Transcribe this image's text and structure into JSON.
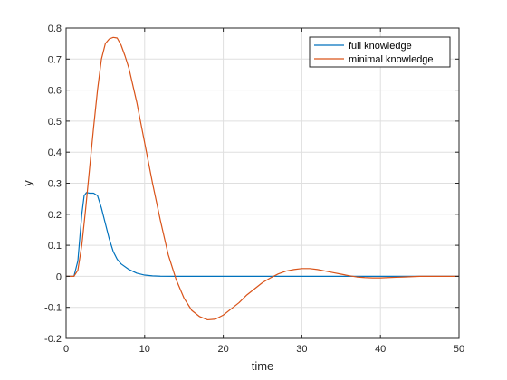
{
  "chart_data": {
    "type": "line",
    "xlabel": "time",
    "ylabel": "y",
    "xlim": [
      0,
      50
    ],
    "ylim": [
      -0.2,
      0.8
    ],
    "xticks": [
      0,
      10,
      20,
      30,
      40,
      50
    ],
    "yticks": [
      -0.2,
      -0.1,
      0,
      0.1,
      0.2,
      0.3,
      0.4,
      0.5,
      0.6,
      0.7,
      0.8
    ],
    "xtick_labels": [
      "0",
      "10",
      "20",
      "30",
      "40",
      "50"
    ],
    "ytick_labels": [
      "-0.2",
      "-0.1",
      "0",
      "0.1",
      "0.2",
      "0.3",
      "0.4",
      "0.5",
      "0.6",
      "0.7",
      "0.8"
    ],
    "grid": true,
    "legend_position": "top-right",
    "series": [
      {
        "name": "full knowledge",
        "color": "#0072BD",
        "x": [
          0,
          1,
          1.5,
          2,
          2.3,
          2.6,
          3,
          3.5,
          4,
          4.5,
          5,
          5.5,
          6,
          6.5,
          7,
          8,
          9,
          10,
          11,
          12,
          14,
          16,
          20,
          30,
          40,
          50
        ],
        "y": [
          0,
          0,
          0.05,
          0.2,
          0.26,
          0.27,
          0.268,
          0.268,
          0.26,
          0.22,
          0.17,
          0.12,
          0.08,
          0.055,
          0.04,
          0.022,
          0.01,
          0.004,
          0.0015,
          0.0005,
          0,
          0,
          0,
          0,
          0,
          0
        ]
      },
      {
        "name": "minimal knowledge",
        "color": "#D95319",
        "x": [
          0,
          1,
          1.5,
          2,
          2.5,
          3,
          3.5,
          4,
          4.5,
          5,
          5.5,
          6,
          6.5,
          7,
          7.5,
          8,
          9,
          10,
          11,
          12,
          13,
          14,
          15,
          16,
          17,
          18,
          19,
          20,
          21,
          22,
          23,
          24,
          25,
          26,
          27,
          28,
          29,
          30,
          31,
          32,
          33,
          34,
          35,
          36,
          37,
          38,
          39,
          40,
          41,
          42,
          43,
          44,
          45,
          46,
          47,
          48,
          49,
          50
        ],
        "y": [
          0,
          0,
          0.02,
          0.1,
          0.22,
          0.35,
          0.48,
          0.6,
          0.7,
          0.75,
          0.765,
          0.77,
          0.768,
          0.745,
          0.71,
          0.67,
          0.56,
          0.43,
          0.3,
          0.18,
          0.07,
          -0.01,
          -0.07,
          -0.11,
          -0.13,
          -0.14,
          -0.138,
          -0.125,
          -0.105,
          -0.085,
          -0.06,
          -0.04,
          -0.02,
          -0.005,
          0.008,
          0.017,
          0.022,
          0.025,
          0.025,
          0.022,
          0.017,
          0.012,
          0.007,
          0.002,
          -0.002,
          -0.004,
          -0.005,
          -0.005,
          -0.004,
          -0.003,
          -0.002,
          -0.001,
          0,
          0,
          0,
          0,
          0,
          0
        ]
      }
    ]
  }
}
